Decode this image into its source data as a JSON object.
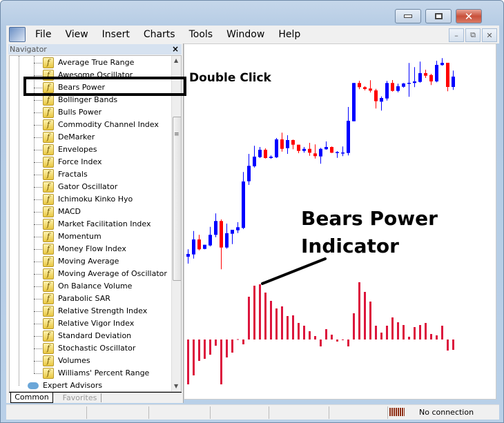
{
  "window": {
    "controls": {
      "minimize": "minimize-icon",
      "maximize": "maximize-icon",
      "close": "close-icon"
    }
  },
  "menu": [
    "File",
    "View",
    "Insert",
    "Charts",
    "Tools",
    "Window",
    "Help"
  ],
  "mdi": {
    "minimize": "–",
    "restore": "⧉",
    "close": "✕"
  },
  "navigator": {
    "title": "Navigator",
    "close": "×",
    "items": [
      "Average True Range",
      "Awesome Oscillator",
      "Bears Power",
      "Bollinger Bands",
      "Bulls Power",
      "Commodity Channel Index",
      "DeMarker",
      "Envelopes",
      "Force Index",
      "Fractals",
      "Gator Oscillator",
      "Ichimoku Kinko Hyo",
      "MACD",
      "Market Facilitation Index",
      "Momentum",
      "Money Flow Index",
      "Moving Average",
      "Moving Average of Oscillator",
      "On Balance Volume",
      "Parabolic SAR",
      "Relative Strength Index",
      "Relative Vigor Index",
      "Standard Deviation",
      "Stochastic Oscillator",
      "Volumes",
      "Williams' Percent Range"
    ],
    "folder": "Expert Advisors",
    "selected": "Bears Power",
    "tabs": [
      "Common",
      "Favorites"
    ],
    "active_tab": "Common"
  },
  "annotations": {
    "double_click": "Double Click",
    "indicator_line1": "Bears Power",
    "indicator_line2": "Indicator"
  },
  "status": {
    "connection": "No connection"
  },
  "colors": {
    "bull": "#0000ff",
    "bear": "#ff0000",
    "bears_power": "#dc143c"
  },
  "chart_data": [
    {
      "type": "candlestick",
      "ohlc": [
        [
          25,
          35.7,
          15,
          29
        ],
        [
          28.3,
          62.3,
          22.3,
          50
        ],
        [
          50,
          56.7,
          34.3,
          35.7
        ],
        [
          36.3,
          42.3,
          35.7,
          42.3
        ],
        [
          41.3,
          68.3,
          40,
          56.7
        ],
        [
          56.7,
          87.7,
          53.3,
          76.7
        ],
        [
          76.7,
          79,
          6.7,
          38.3
        ],
        [
          38.3,
          73,
          36.7,
          59
        ],
        [
          58.3,
          64,
          43.3,
          64
        ],
        [
          63.3,
          75,
          59.3,
          67.7
        ],
        [
          66.7,
          147.7,
          65,
          134
        ],
        [
          134.3,
          174,
          129,
          156.7
        ],
        [
          156,
          185.7,
          154.3,
          170
        ],
        [
          169.3,
          184,
          168,
          180
        ],
        [
          180,
          182,
          167.3,
          168
        ],
        [
          168,
          171.7,
          166.7,
          170
        ],
        [
          169,
          197,
          168,
          195
        ],
        [
          195,
          204.7,
          177.3,
          181.3
        ],
        [
          182.3,
          201,
          174,
          194
        ],
        [
          194,
          194.7,
          180.7,
          187.3
        ],
        [
          187.3,
          187.3,
          175,
          178.3
        ],
        [
          178.3,
          184,
          175.7,
          181.3
        ],
        [
          181.3,
          190,
          171.3,
          175.7
        ],
        [
          174.7,
          187.7,
          167.3,
          170.7
        ],
        [
          170.3,
          182.7,
          159.7,
          181.3
        ],
        [
          180.7,
          192,
          180,
          184
        ],
        [
          184,
          184.7,
          175.3,
          175.7
        ],
        [
          176,
          178,
          168.3,
          176.7
        ],
        [
          175.3,
          184.7,
          170.7,
          176
        ],
        [
          175.3,
          242,
          171.7,
          222
        ],
        [
          221.3,
          276.7,
          221.3,
          276.7
        ],
        [
          276.7,
          280,
          267.7,
          270.7
        ],
        [
          270.7,
          272,
          266,
          268
        ],
        [
          268.7,
          280.7,
          263,
          265.7
        ],
        [
          266,
          268.3,
          239.7,
          250.3
        ],
        [
          249.7,
          257.3,
          236.7,
          255
        ],
        [
          254.3,
          279.7,
          251.3,
          276.7
        ],
        [
          276.7,
          281,
          264.3,
          265.3
        ],
        [
          265.3,
          275.7,
          263.3,
          272
        ],
        [
          271.3,
          276.7,
          270,
          276
        ],
        [
          275.7,
          305.7,
          256.7,
          277
        ],
        [
          276.7,
          299.7,
          270.7,
          279
        ],
        [
          278.3,
          307.7,
          277.3,
          291
        ],
        [
          291,
          296,
          284,
          287.3
        ],
        [
          288.3,
          290,
          273.7,
          279
        ],
        [
          279,
          309,
          277.7,
          303
        ],
        [
          302.7,
          312.7,
          301.7,
          306
        ],
        [
          306,
          306,
          264.7,
          271
        ],
        [
          271,
          294.7,
          266.7,
          286
        ]
      ]
    },
    {
      "type": "bar",
      "values": [
        -65,
        -52,
        -31,
        -28,
        -22,
        -9,
        -65,
        -26,
        -19,
        0.5,
        -7,
        62,
        78,
        80,
        68,
        56,
        45,
        48,
        34,
        35,
        24,
        20,
        12,
        5,
        -10,
        15,
        7,
        -3,
        -0.5,
        -10,
        38,
        83,
        69,
        55,
        20,
        10,
        20,
        32,
        25,
        21,
        4,
        18,
        21,
        24,
        8,
        6,
        20,
        -16,
        -15
      ]
    }
  ]
}
